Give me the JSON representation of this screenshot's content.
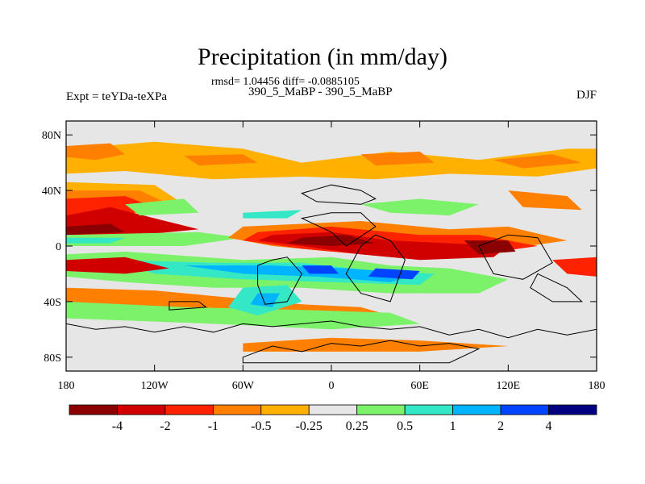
{
  "title": "Precipitation (in mm/day)",
  "stats": "rmsd= 1.04456 diff= -0.0885105",
  "left_label": "Expt = teYDa-teXPa",
  "center_label": "390_5_MaBP - 390_5_MaBP",
  "right_label": "DJF",
  "colors": {
    "background": "#e6e6e6",
    "coast": "#000000"
  },
  "chart_data": {
    "type": "heatmap",
    "title": "Precipitation (in mm/day)",
    "lat_ticks": [
      "80N",
      "40N",
      "0",
      "40S",
      "80S"
    ],
    "lat_values": [
      80,
      40,
      0,
      -40,
      -80
    ],
    "lon_ticks": [
      "180",
      "120W",
      "60W",
      "0",
      "60E",
      "120E",
      "180"
    ],
    "lon_values": [
      -180,
      -120,
      -60,
      0,
      60,
      120,
      180
    ],
    "xlim": [
      -180,
      180
    ],
    "ylim": [
      -90,
      90
    ],
    "colorbar": {
      "colors": [
        "#8b0000",
        "#d10000",
        "#ff2200",
        "#ff8000",
        "#ffb000",
        "#e6e6e6",
        "#7cf26a",
        "#34e8c6",
        "#00b4ff",
        "#0044ff",
        "#000080"
      ],
      "labels": [
        "-4",
        "-2",
        "-1",
        "-0.5",
        "-0.25",
        "0.25",
        "0.5",
        "1",
        "2",
        "4"
      ]
    },
    "regions": [
      {
        "level": -0.25,
        "pts": [
          [
            -180,
            70
          ],
          [
            -120,
            75
          ],
          [
            -60,
            70
          ],
          [
            -20,
            60
          ],
          [
            40,
            68
          ],
          [
            100,
            62
          ],
          [
            160,
            70
          ],
          [
            180,
            70
          ],
          [
            180,
            56
          ],
          [
            140,
            50
          ],
          [
            80,
            52
          ],
          [
            30,
            48
          ],
          [
            -20,
            50
          ],
          [
            -80,
            48
          ],
          [
            -140,
            54
          ],
          [
            -180,
            52
          ]
        ]
      },
      {
        "level": -0.5,
        "pts": [
          [
            -180,
            72
          ],
          [
            -150,
            74
          ],
          [
            -140,
            66
          ],
          [
            -160,
            62
          ],
          [
            -180,
            64
          ]
        ]
      },
      {
        "level": -0.5,
        "pts": [
          [
            -100,
            65
          ],
          [
            -60,
            66
          ],
          [
            -50,
            60
          ],
          [
            -90,
            58
          ]
        ]
      },
      {
        "level": -0.5,
        "pts": [
          [
            20,
            66
          ],
          [
            60,
            68
          ],
          [
            70,
            60
          ],
          [
            30,
            58
          ]
        ]
      },
      {
        "level": -0.5,
        "pts": [
          [
            110,
            62
          ],
          [
            150,
            66
          ],
          [
            170,
            60
          ],
          [
            130,
            56
          ]
        ]
      },
      {
        "level": -0.25,
        "pts": [
          [
            -180,
            46
          ],
          [
            -120,
            44
          ],
          [
            -100,
            30
          ],
          [
            -140,
            22
          ],
          [
            -180,
            24
          ]
        ]
      },
      {
        "level": -0.5,
        "pts": [
          [
            -180,
            40
          ],
          [
            -130,
            40
          ],
          [
            -110,
            30
          ],
          [
            -140,
            24
          ],
          [
            -180,
            26
          ]
        ]
      },
      {
        "level": -1,
        "pts": [
          [
            -180,
            34
          ],
          [
            -140,
            36
          ],
          [
            -120,
            28
          ],
          [
            -140,
            22
          ],
          [
            -180,
            20
          ]
        ]
      },
      {
        "level": -2,
        "pts": [
          [
            -180,
            22
          ],
          [
            -150,
            28
          ],
          [
            -120,
            20
          ],
          [
            -90,
            12
          ],
          [
            -130,
            8
          ],
          [
            -180,
            8
          ]
        ]
      },
      {
        "level": -4,
        "pts": [
          [
            -180,
            14
          ],
          [
            -150,
            16
          ],
          [
            -140,
            10
          ],
          [
            -180,
            8
          ]
        ]
      },
      {
        "level": 0.5,
        "pts": [
          [
            -180,
            8
          ],
          [
            -90,
            10
          ],
          [
            -60,
            6
          ],
          [
            -100,
            0
          ],
          [
            -180,
            0
          ]
        ]
      },
      {
        "level": 1,
        "pts": [
          [
            -180,
            6
          ],
          [
            -140,
            6
          ],
          [
            -150,
            2
          ],
          [
            -180,
            2
          ]
        ]
      },
      {
        "level": -0.5,
        "pts": [
          [
            -60,
            14
          ],
          [
            20,
            18
          ],
          [
            80,
            12
          ],
          [
            120,
            14
          ],
          [
            160,
            4
          ],
          [
            120,
            -2
          ],
          [
            60,
            -6
          ],
          [
            0,
            -4
          ],
          [
            -40,
            0
          ],
          [
            -70,
            6
          ]
        ]
      },
      {
        "level": -1,
        "pts": [
          [
            -50,
            10
          ],
          [
            0,
            14
          ],
          [
            60,
            8
          ],
          [
            100,
            8
          ],
          [
            140,
            0
          ],
          [
            100,
            -6
          ],
          [
            40,
            -8
          ],
          [
            -20,
            -2
          ],
          [
            -60,
            4
          ]
        ]
      },
      {
        "level": -2,
        "pts": [
          [
            -40,
            8
          ],
          [
            0,
            10
          ],
          [
            40,
            4
          ],
          [
            80,
            2
          ],
          [
            120,
            0
          ],
          [
            110,
            -8
          ],
          [
            60,
            -10
          ],
          [
            20,
            -6
          ],
          [
            -20,
            0
          ],
          [
            -50,
            4
          ]
        ]
      },
      {
        "level": -4,
        "pts": [
          [
            -20,
            6
          ],
          [
            10,
            8
          ],
          [
            30,
            2
          ],
          [
            0,
            0
          ],
          [
            -30,
            2
          ]
        ]
      },
      {
        "level": -4,
        "pts": [
          [
            90,
            4
          ],
          [
            120,
            4
          ],
          [
            125,
            -4
          ],
          [
            100,
            -6
          ]
        ]
      },
      {
        "level": 0.5,
        "pts": [
          [
            -180,
            -6
          ],
          [
            -140,
            -4
          ],
          [
            -60,
            -10
          ],
          [
            0,
            -8
          ],
          [
            40,
            -14
          ],
          [
            80,
            -16
          ],
          [
            120,
            -24
          ],
          [
            100,
            -34
          ],
          [
            40,
            -34
          ],
          [
            -20,
            -30
          ],
          [
            -80,
            -30
          ],
          [
            -140,
            -26
          ],
          [
            -180,
            -22
          ]
        ]
      },
      {
        "level": 1,
        "pts": [
          [
            -150,
            -10
          ],
          [
            -80,
            -12
          ],
          [
            -20,
            -12
          ],
          [
            30,
            -18
          ],
          [
            70,
            -20
          ],
          [
            60,
            -28
          ],
          [
            0,
            -26
          ],
          [
            -60,
            -24
          ],
          [
            -120,
            -20
          ]
        ]
      },
      {
        "level": 2,
        "pts": [
          [
            -100,
            -14
          ],
          [
            -40,
            -14
          ],
          [
            10,
            -16
          ],
          [
            60,
            -20
          ],
          [
            40,
            -26
          ],
          [
            -10,
            -22
          ],
          [
            -60,
            -20
          ]
        ]
      },
      {
        "level": 4,
        "pts": [
          [
            -20,
            -14
          ],
          [
            0,
            -14
          ],
          [
            5,
            -20
          ],
          [
            -15,
            -20
          ]
        ]
      },
      {
        "level": 4,
        "pts": [
          [
            30,
            -16
          ],
          [
            60,
            -18
          ],
          [
            55,
            -24
          ],
          [
            25,
            -22
          ]
        ]
      },
      {
        "level": -2,
        "pts": [
          [
            -180,
            -10
          ],
          [
            -140,
            -8
          ],
          [
            -110,
            -16
          ],
          [
            -140,
            -20
          ],
          [
            -180,
            -18
          ]
        ]
      },
      {
        "level": -1,
        "pts": [
          [
            150,
            -10
          ],
          [
            180,
            -8
          ],
          [
            180,
            -22
          ],
          [
            160,
            -20
          ]
        ]
      },
      {
        "level": -0.5,
        "pts": [
          [
            -180,
            -30
          ],
          [
            -120,
            -32
          ],
          [
            -60,
            -38
          ],
          [
            -20,
            -42
          ],
          [
            20,
            -44
          ],
          [
            40,
            -50
          ],
          [
            0,
            -52
          ],
          [
            -60,
            -48
          ],
          [
            -120,
            -44
          ],
          [
            -180,
            -40
          ]
        ]
      },
      {
        "level": 0.5,
        "pts": [
          [
            -180,
            -40
          ],
          [
            -100,
            -44
          ],
          [
            -20,
            -46
          ],
          [
            40,
            -48
          ],
          [
            60,
            -56
          ],
          [
            0,
            -60
          ],
          [
            -80,
            -56
          ],
          [
            -180,
            -52
          ]
        ]
      },
      {
        "level": 1,
        "pts": [
          [
            -60,
            -30
          ],
          [
            -30,
            -28
          ],
          [
            -20,
            -40
          ],
          [
            -50,
            -50
          ],
          [
            -70,
            -44
          ]
        ]
      },
      {
        "level": 2,
        "pts": [
          [
            -50,
            -34
          ],
          [
            -35,
            -34
          ],
          [
            -40,
            -44
          ],
          [
            -55,
            -42
          ]
        ]
      },
      {
        "level": 0.5,
        "pts": [
          [
            20,
            30
          ],
          [
            60,
            34
          ],
          [
            100,
            30
          ],
          [
            80,
            22
          ],
          [
            40,
            24
          ]
        ]
      },
      {
        "level": 0.5,
        "pts": [
          [
            -140,
            30
          ],
          [
            -100,
            34
          ],
          [
            -90,
            24
          ],
          [
            -130,
            22
          ]
        ]
      },
      {
        "level": 1,
        "pts": [
          [
            -60,
            24
          ],
          [
            -20,
            26
          ],
          [
            -30,
            20
          ],
          [
            -60,
            20
          ]
        ]
      },
      {
        "level": -0.5,
        "pts": [
          [
            120,
            40
          ],
          [
            160,
            36
          ],
          [
            170,
            26
          ],
          [
            130,
            28
          ]
        ]
      },
      {
        "level": -0.5,
        "pts": [
          [
            -60,
            -70
          ],
          [
            0,
            -66
          ],
          [
            60,
            -68
          ],
          [
            120,
            -72
          ],
          [
            60,
            -76
          ],
          [
            0,
            -76
          ],
          [
            -60,
            -76
          ]
        ]
      }
    ],
    "continents": [
      [
        [
          -180,
          -56
        ],
        [
          -160,
          -60
        ],
        [
          -140,
          -58
        ],
        [
          -120,
          -62
        ],
        [
          -100,
          -58
        ],
        [
          -80,
          -62
        ],
        [
          -60,
          -56
        ],
        [
          -40,
          -58
        ],
        [
          -20,
          -56
        ],
        [
          0,
          -54
        ],
        [
          20,
          -58
        ],
        [
          40,
          -60
        ],
        [
          60,
          -58
        ],
        [
          80,
          -64
        ],
        [
          100,
          -60
        ],
        [
          120,
          -66
        ],
        [
          140,
          -60
        ],
        [
          160,
          -64
        ],
        [
          180,
          -60
        ]
      ],
      [
        [
          -60,
          -80
        ],
        [
          -40,
          -72
        ],
        [
          -20,
          -76
        ],
        [
          0,
          -70
        ],
        [
          20,
          -72
        ],
        [
          40,
          -68
        ],
        [
          60,
          -72
        ],
        [
          80,
          -70
        ],
        [
          100,
          -74
        ],
        [
          80,
          -84
        ],
        [
          -60,
          -84
        ]
      ],
      [
        [
          -20,
          38
        ],
        [
          0,
          44
        ],
        [
          20,
          40
        ],
        [
          30,
          34
        ],
        [
          20,
          30
        ],
        [
          -10,
          32
        ]
      ],
      [
        [
          -40,
          -10
        ],
        [
          -30,
          -8
        ],
        [
          -20,
          -20
        ],
        [
          -30,
          -40
        ],
        [
          -45,
          -42
        ],
        [
          -50,
          -28
        ],
        [
          -50,
          -14
        ]
      ],
      [
        [
          20,
          0
        ],
        [
          30,
          8
        ],
        [
          40,
          4
        ],
        [
          50,
          -10
        ],
        [
          40,
          -40
        ],
        [
          20,
          -34
        ],
        [
          10,
          -20
        ]
      ],
      [
        [
          -20,
          20
        ],
        [
          0,
          10
        ],
        [
          10,
          0
        ],
        [
          30,
          14
        ],
        [
          20,
          24
        ],
        [
          0,
          24
        ]
      ],
      [
        [
          100,
          0
        ],
        [
          120,
          8
        ],
        [
          140,
          6
        ],
        [
          150,
          -12
        ],
        [
          130,
          -24
        ],
        [
          110,
          -20
        ]
      ],
      [
        [
          140,
          -20
        ],
        [
          160,
          -30
        ],
        [
          170,
          -40
        ],
        [
          150,
          -40
        ],
        [
          135,
          -30
        ]
      ],
      [
        [
          -110,
          -40
        ],
        [
          -90,
          -40
        ],
        [
          -85,
          -44
        ],
        [
          -110,
          -46
        ]
      ]
    ]
  }
}
